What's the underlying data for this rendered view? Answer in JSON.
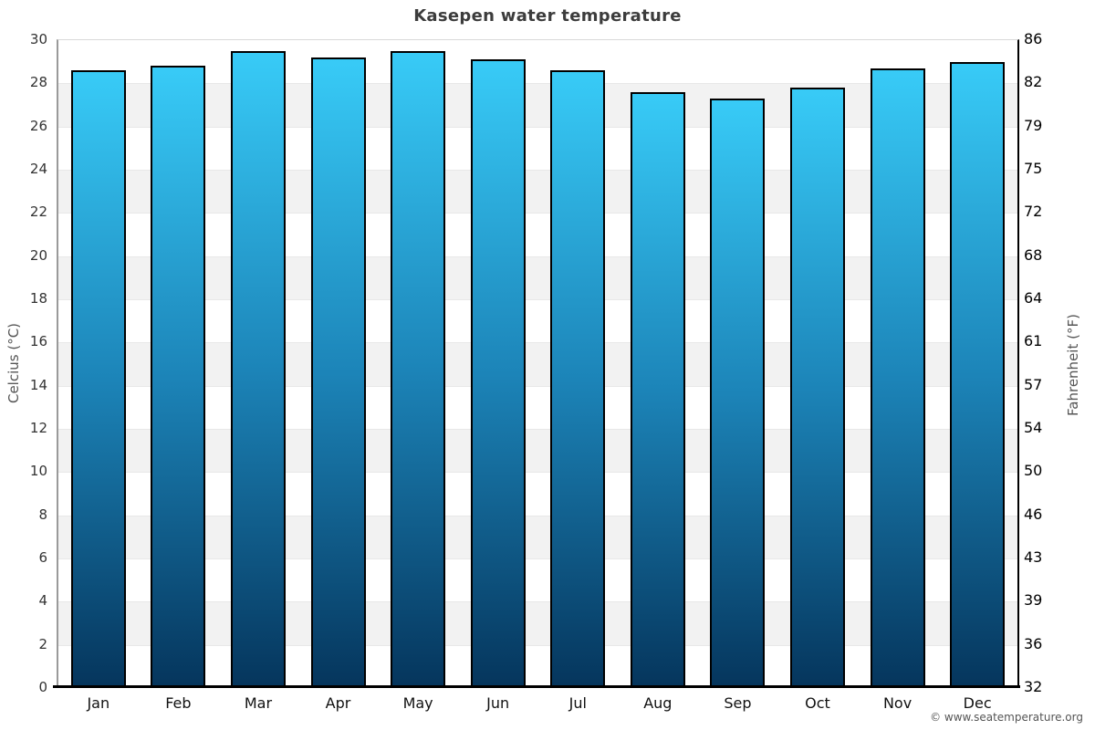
{
  "page": {
    "credit": "© www.seatemperature.org"
  },
  "chart_data": {
    "type": "bar",
    "title": "Kasepen water temperature",
    "xlabel": "",
    "ylabel_left": "Celcius (°C)",
    "ylabel_right": "Fahrenheit (°F)",
    "ylim_celsius": [
      0,
      30
    ],
    "ylim_fahrenheit": [
      32,
      86
    ],
    "legend": "none",
    "grid": "alternating 2°C horizontal bands, gray and white",
    "categories": [
      "Jan",
      "Feb",
      "Mar",
      "Apr",
      "May",
      "Jun",
      "Jul",
      "Aug",
      "Sep",
      "Oct",
      "Nov",
      "Dec"
    ],
    "values_celsius": [
      28.6,
      28.8,
      29.5,
      29.2,
      29.5,
      29.1,
      28.6,
      27.6,
      27.3,
      27.8,
      28.7,
      29.0
    ],
    "yticks_celsius": [
      30,
      28,
      26,
      24,
      22,
      20,
      18,
      16,
      14,
      12,
      10,
      8,
      6,
      4,
      2,
      0
    ],
    "yticks_fahrenheit": [
      86,
      82,
      79,
      75,
      72,
      68,
      64,
      61,
      57,
      54,
      50,
      46,
      43,
      39,
      36,
      32
    ],
    "colors": {
      "bar_gradient_top": "#38cbf7",
      "bar_gradient_mid": "#1c84b8",
      "bar_gradient_bottom": "#05355c",
      "bar_border": "#000000",
      "band_gray": "#f2f2f2",
      "band_white": "#ffffff",
      "title_text": "#3c3c3c",
      "axis_line_left": "#9a9a9a",
      "axis_line_bottom": "#000000"
    }
  }
}
